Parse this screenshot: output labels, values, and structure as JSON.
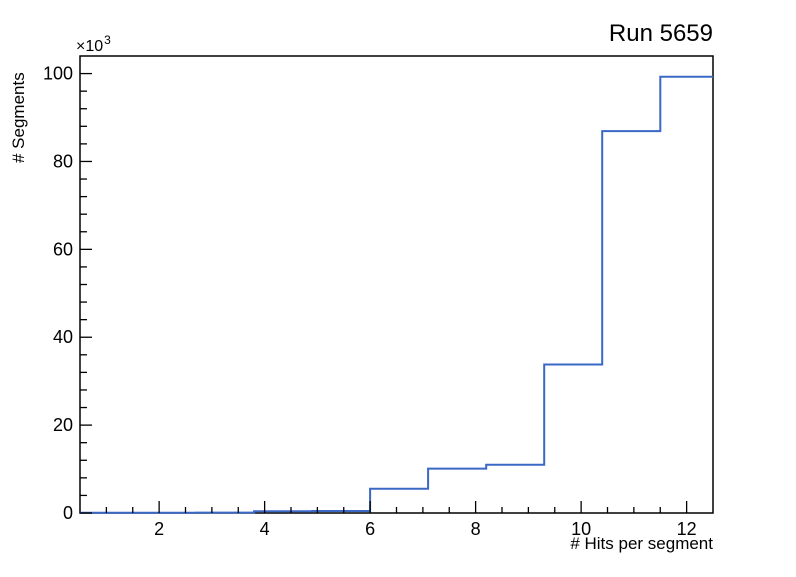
{
  "page": {
    "background_color": "#ffffff"
  },
  "chart_data": {
    "type": "histogram-step",
    "title": "Run 5659",
    "xlabel": "# Hits per segment",
    "ylabel": "# Segments",
    "y_mult_base": "×10",
    "y_mult_exp": "3",
    "y_unit_scale": "counts in thousands",
    "bin_edges": [
      0.5,
      1.6,
      2.7,
      3.8,
      4.9,
      6.0,
      7.1,
      8.2,
      9.3,
      10.4,
      11.5,
      12.6
    ],
    "counts_k": [
      0.05,
      0.05,
      0.1,
      0.4,
      0.45,
      5.5,
      10.1,
      11.0,
      33.8,
      86.9,
      99.3
    ],
    "xlim": [
      0.5,
      12.5
    ],
    "ylim": [
      0,
      104
    ],
    "x_major_ticks": [
      2,
      4,
      6,
      8,
      10,
      12
    ],
    "x_minor_step": 0.5,
    "y_major_ticks": [
      0,
      20,
      40,
      60,
      80,
      100
    ],
    "y_minor_step": 4,
    "grid": false,
    "legend": null,
    "line_color": "#3a68c5",
    "frame_color": "#000000",
    "text_color": "#000000"
  }
}
